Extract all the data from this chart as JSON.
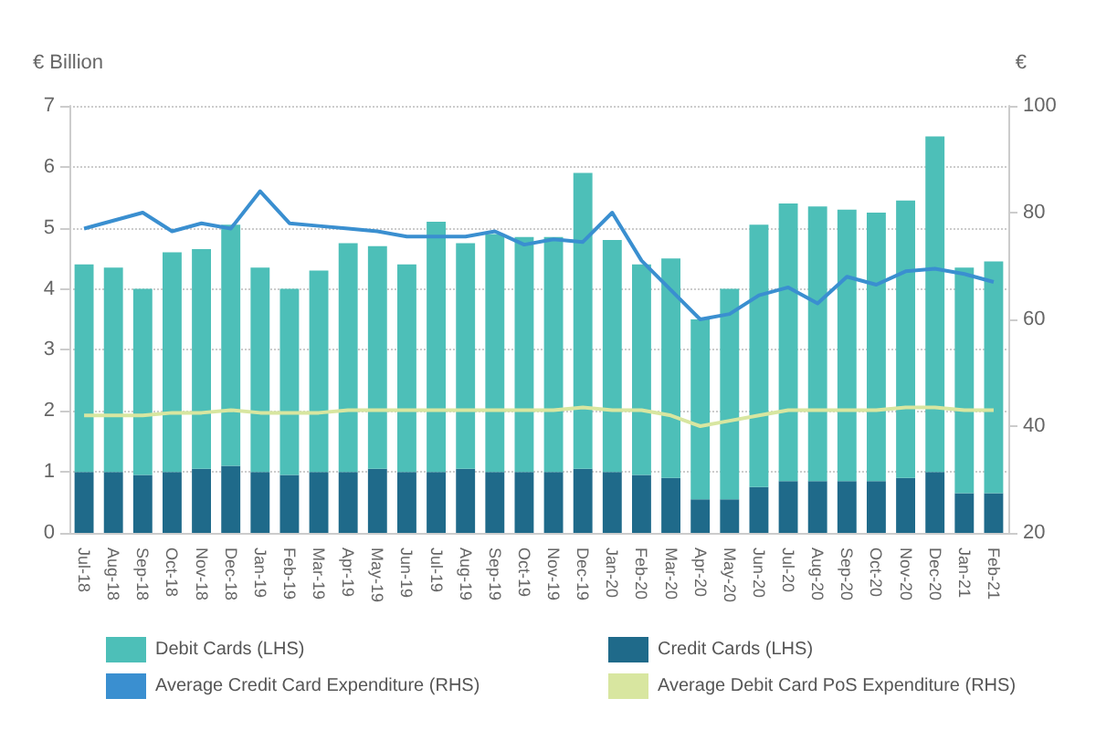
{
  "chart_data": {
    "type": "bar",
    "stacked": true,
    "ylabel": "€ Billion",
    "y2label": "€",
    "categories": [
      "Jul-18",
      "Aug-18",
      "Sep-18",
      "Oct-18",
      "Nov-18",
      "Dec-18",
      "Jan-19",
      "Feb-19",
      "Mar-19",
      "Apr-19",
      "May-19",
      "Jun-19",
      "Jul-19",
      "Aug-19",
      "Sep-19",
      "Oct-19",
      "Nov-19",
      "Dec-19",
      "Jan-20",
      "Feb-20",
      "Mar-20",
      "Apr-20",
      "May-20",
      "Jun-20",
      "Jul-20",
      "Aug-20",
      "Sep-20",
      "Oct-20",
      "Nov-20",
      "Dec-20",
      "Jan-21",
      "Feb-21"
    ],
    "series": [
      {
        "name": "Credit Cards (LHS)",
        "color": "#1f6a8a",
        "values": [
          1.0,
          1.0,
          0.95,
          1.0,
          1.05,
          1.1,
          1.0,
          0.95,
          1.0,
          1.0,
          1.05,
          1.0,
          1.0,
          1.05,
          1.0,
          1.0,
          1.0,
          1.05,
          1.0,
          0.95,
          0.9,
          0.55,
          0.55,
          0.75,
          0.85,
          0.85,
          0.85,
          0.85,
          0.9,
          1.0,
          0.65,
          0.65
        ]
      },
      {
        "name": "Debit Cards (LHS)",
        "color": "#4dbfb8",
        "values": [
          3.4,
          3.35,
          3.05,
          3.6,
          3.6,
          3.95,
          3.35,
          3.05,
          3.3,
          3.75,
          3.65,
          3.4,
          4.1,
          3.7,
          3.9,
          3.85,
          3.85,
          4.85,
          3.8,
          3.45,
          3.6,
          2.95,
          3.45,
          4.3,
          4.55,
          4.5,
          4.45,
          4.4,
          4.55,
          5.5,
          3.7,
          3.8
        ]
      },
      {
        "name": "Average Credit Card Expenditure (RHS)",
        "type": "line",
        "axis": "y2",
        "color": "#3a8fd0",
        "values": [
          77,
          78.5,
          80,
          76.5,
          78,
          77,
          84,
          78,
          77.5,
          77,
          76.5,
          75.5,
          75.5,
          75.5,
          76.5,
          74,
          75,
          74.5,
          80,
          71,
          65.5,
          60,
          61,
          64.5,
          66,
          63,
          68,
          66.5,
          69,
          69.5,
          68.5,
          67
        ]
      },
      {
        "name": "Average Debit Card PoS Expenditure (RHS)",
        "type": "line",
        "axis": "y2",
        "color": "#d8e6a0",
        "values": [
          42,
          42,
          42,
          42.5,
          42.5,
          43,
          42.5,
          42.5,
          42.5,
          43,
          43,
          43,
          43,
          43,
          43,
          43,
          43,
          43.5,
          43,
          43,
          42,
          40,
          41,
          42,
          43,
          43,
          43,
          43,
          43.5,
          43.5,
          43,
          43
        ]
      }
    ],
    "ylim": [
      0,
      7
    ],
    "yticks": [
      0,
      1,
      2,
      3,
      4,
      5,
      6,
      7
    ],
    "y2lim": [
      20,
      100
    ],
    "y2ticks": [
      20,
      40,
      60,
      80,
      100
    ],
    "grid": "y",
    "legend": "bottom",
    "line_style": "solid"
  }
}
